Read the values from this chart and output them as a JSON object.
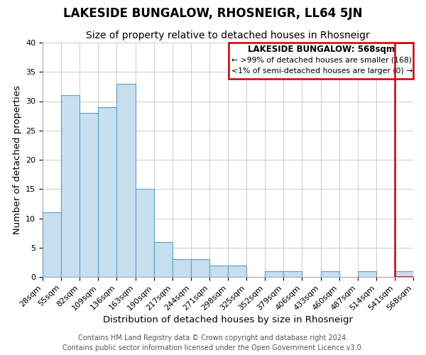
{
  "title": "LAKESIDE BUNGALOW, RHOSNEIGR, LL64 5JN",
  "subtitle": "Size of property relative to detached houses in Rhosneigr",
  "xlabel": "Distribution of detached houses by size in Rhosneigr",
  "ylabel": "Number of detached properties",
  "bar_values": [
    11,
    31,
    28,
    29,
    33,
    15,
    6,
    3,
    3,
    2,
    2,
    0,
    1,
    1,
    0,
    1,
    0,
    1,
    0,
    1
  ],
  "bin_labels": [
    "28sqm",
    "55sqm",
    "82sqm",
    "109sqm",
    "136sqm",
    "163sqm",
    "190sqm",
    "217sqm",
    "244sqm",
    "271sqm",
    "298sqm",
    "325sqm",
    "352sqm",
    "379sqm",
    "406sqm",
    "433sqm",
    "460sqm",
    "487sqm",
    "514sqm",
    "541sqm",
    "568sqm"
  ],
  "bar_color": "#c8dff0",
  "bar_edge_color": "#5a9fc0",
  "highlight_color": "#cc0000",
  "ylim": [
    0,
    40
  ],
  "yticks": [
    0,
    5,
    10,
    15,
    20,
    25,
    30,
    35,
    40
  ],
  "legend_title": "LAKESIDE BUNGALOW: 568sqm",
  "legend_line1": "← >99% of detached houses are smaller (168)",
  "legend_line2": "<1% of semi-detached houses are larger (0) →",
  "footer_line1": "Contains HM Land Registry data © Crown copyright and database right 2024.",
  "footer_line2": "Contains public sector information licensed under the Open Government Licence v3.0.",
  "grid_color": "#cccccc",
  "background_color": "#ffffff",
  "title_fontsize": 12,
  "subtitle_fontsize": 10,
  "axis_label_fontsize": 9.5,
  "tick_fontsize": 8,
  "footer_fontsize": 7
}
